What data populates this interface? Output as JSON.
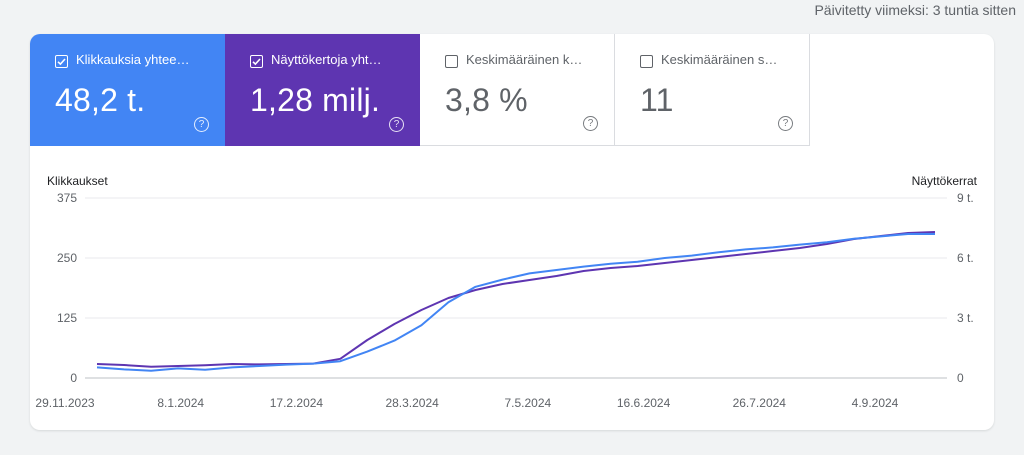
{
  "header": {
    "updated_text": "Päivitetty viimeksi: 3 tuntia sitten"
  },
  "metrics": [
    {
      "label": "Klikkauksia yhtee…",
      "value": "48,2 t.",
      "checked": true,
      "color": "#4285f4"
    },
    {
      "label": "Näyttökertoja yht…",
      "value": "1,28 milj.",
      "checked": true,
      "color": "#5e35b1"
    },
    {
      "label": "Keskimääräinen k…",
      "value": "3,8 %",
      "checked": false
    },
    {
      "label": "Keskimääräinen s…",
      "value": "11",
      "checked": false
    }
  ],
  "help_glyph": "?",
  "chart_data": {
    "type": "line",
    "left_axis_title": "Klikkaukset",
    "right_axis_title": "Näyttökerrat",
    "left_ticks": [
      "0",
      "125",
      "250",
      "375"
    ],
    "right_ticks": [
      "0",
      "3 t.",
      "6 t.",
      "9 t."
    ],
    "ylim_left": [
      0,
      375
    ],
    "ylim_right": [
      0,
      9000
    ],
    "x_labels": [
      "29.11.2023",
      "8.1.2024",
      "17.2.2024",
      "28.3.2024",
      "7.5.2024",
      "16.6.2024",
      "26.7.2024",
      "4.9.2024"
    ],
    "grid": true,
    "series": [
      {
        "name": "Klikkaukset",
        "axis": "left",
        "color": "#4285f4",
        "values": [
          22,
          18,
          15,
          20,
          17,
          22,
          25,
          28,
          30,
          35,
          55,
          78,
          110,
          158,
          190,
          205,
          218,
          225,
          232,
          238,
          242,
          250,
          255,
          262,
          268,
          272,
          278,
          283,
          290,
          295,
          300,
          300
        ]
      },
      {
        "name": "Näyttökerrat",
        "axis": "right",
        "color": "#5e35b1",
        "values": [
          700,
          650,
          560,
          600,
          640,
          700,
          680,
          700,
          720,
          960,
          1900,
          2700,
          3400,
          4000,
          4400,
          4700,
          4900,
          5100,
          5350,
          5500,
          5600,
          5750,
          5900,
          6050,
          6200,
          6350,
          6500,
          6700,
          6950,
          7100,
          7250,
          7300
        ]
      }
    ]
  }
}
